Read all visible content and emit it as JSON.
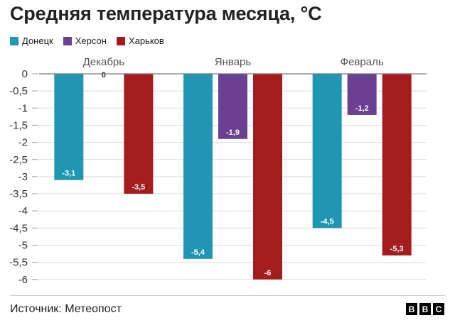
{
  "title": "Средняя температура месяца, °C",
  "legend": [
    {
      "label": "Донецк",
      "color": "#1f96b4"
    },
    {
      "label": "Херсон",
      "color": "#6a3f94"
    },
    {
      "label": "Харьков",
      "color": "#a51c1c"
    }
  ],
  "source": "Источник: Метеопост",
  "logo": [
    "B",
    "B",
    "C"
  ],
  "chart_data": {
    "type": "bar",
    "categories": [
      "Декабрь",
      "Январь",
      "Февраль"
    ],
    "series": [
      {
        "name": "Донецк",
        "values": [
          -3.1,
          -5.4,
          -4.5
        ],
        "labels": [
          "-3,1",
          "-5,4",
          "-4,5"
        ],
        "color": "#1f96b4"
      },
      {
        "name": "Херсон",
        "values": [
          0,
          -1.9,
          -1.2
        ],
        "labels": [
          "0",
          "-1,9",
          "-1,2"
        ],
        "color": "#6a3f94"
      },
      {
        "name": "Харьков",
        "values": [
          -3.5,
          -6,
          -5.3
        ],
        "labels": [
          "-3,5",
          "-6",
          "-5,3"
        ],
        "color": "#a51c1c"
      }
    ],
    "y_ticks": [
      0,
      -0.5,
      -1,
      -1.5,
      -2,
      -2.5,
      -3,
      -3.5,
      -4,
      -4.5,
      -5,
      -5.5,
      -6
    ],
    "y_tick_labels": [
      "0",
      "-0,5",
      "-1",
      "-1,5",
      "-2",
      "-2,5",
      "-3",
      "-3,5",
      "-4",
      "-4,5",
      "-5",
      "-5,5",
      "-6"
    ],
    "ylim": [
      -6,
      0
    ],
    "grid": true,
    "legend_position": "top-left"
  }
}
